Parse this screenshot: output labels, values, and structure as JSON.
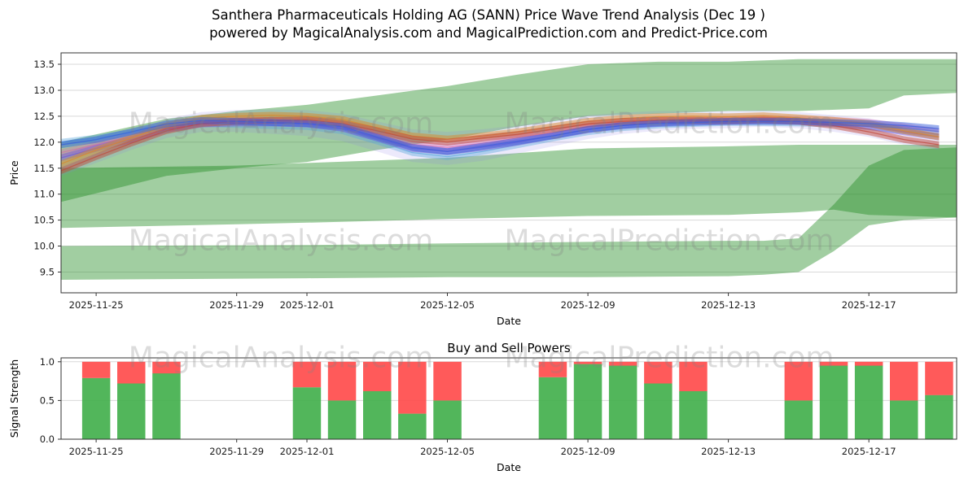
{
  "watermarks": {
    "left": "MagicalAnalysis.com",
    "right": "MagicalPrediction.com"
  },
  "colors": {
    "band_green": "#1f8b1f",
    "bar_buy": "#3fae49",
    "bar_sell": "#ff4848",
    "grid": "#d9d9d9",
    "spine": "#333333",
    "tick_text": "#1a1a1a",
    "watermark": "#808080"
  },
  "chart_data": [
    {
      "type": "area",
      "title_lines": [
        "Santhera Pharmaceuticals Holding AG (SANN) Price Wave Trend Analysis (Dec 19 )",
        "powered by MagicalAnalysis.com and MagicalPrediction.com and Predict-Price.com"
      ],
      "xlabel": "Date",
      "ylabel": "Price",
      "ylim": [
        9.1,
        13.72
      ],
      "x_base_date": "2025-11-24",
      "x_domain": [
        0,
        25.5
      ],
      "grid": "horizontal",
      "legend": "none",
      "yticks": [
        {
          "v": 13.5,
          "label": "13.5"
        },
        {
          "v": 13.0,
          "label": "13.0"
        },
        {
          "v": 12.5,
          "label": "12.5"
        },
        {
          "v": 12.0,
          "label": "12.0"
        },
        {
          "v": 11.5,
          "label": "11.5"
        },
        {
          "v": 11.0,
          "label": "11.0"
        },
        {
          "v": 10.5,
          "label": "10.5"
        },
        {
          "v": 10.0,
          "label": "10.0"
        },
        {
          "v": 9.5,
          "label": "9.5"
        }
      ],
      "xticks": [
        {
          "d": 1,
          "label": "2025-11-25"
        },
        {
          "d": 5,
          "label": "2025-11-29"
        },
        {
          "d": 7,
          "label": "2025-12-01"
        },
        {
          "d": 11,
          "label": "2025-12-05"
        },
        {
          "d": 15,
          "label": "2025-12-09"
        },
        {
          "d": 19,
          "label": "2025-12-13"
        },
        {
          "d": 23,
          "label": "2025-12-17"
        }
      ],
      "green_bands": [
        {
          "name": "upper-trend-band",
          "x": [
            0,
            3,
            5,
            7,
            9,
            11,
            13,
            15,
            17,
            19,
            21,
            23,
            24,
            25.5
          ],
          "top": [
            12.0,
            12.45,
            12.6,
            12.72,
            12.9,
            13.08,
            13.3,
            13.5,
            13.55,
            13.55,
            13.6,
            13.6,
            13.6,
            13.6
          ],
          "bottom": [
            10.85,
            11.35,
            11.5,
            11.62,
            11.85,
            12.05,
            12.3,
            12.5,
            12.55,
            12.6,
            12.6,
            12.65,
            12.9,
            12.95
          ]
        },
        {
          "name": "middle-trend-band",
          "x": [
            0,
            5,
            7,
            11,
            15,
            19,
            21,
            22,
            23,
            25.5
          ],
          "top": [
            11.5,
            11.55,
            11.6,
            11.7,
            11.88,
            11.92,
            11.95,
            11.95,
            11.95,
            11.95
          ],
          "bottom": [
            10.35,
            10.42,
            10.45,
            10.52,
            10.58,
            10.6,
            10.65,
            10.7,
            10.6,
            10.55
          ]
        },
        {
          "name": "lower-trend-band",
          "x": [
            0,
            7,
            11,
            15,
            19,
            20,
            21,
            22,
            23,
            24,
            25.5
          ],
          "top": [
            10.0,
            10.02,
            10.05,
            10.08,
            10.1,
            10.1,
            10.15,
            10.8,
            11.55,
            11.85,
            11.9
          ],
          "bottom": [
            9.35,
            9.38,
            9.4,
            9.4,
            9.42,
            9.45,
            9.5,
            9.9,
            10.4,
            10.5,
            10.55
          ]
        }
      ],
      "envelope": {
        "color": "#8f7fe8",
        "alpha": 0.17,
        "top": [
          11.75,
          12.0,
          12.2,
          12.45,
          12.58,
          12.62,
          12.63,
          12.62,
          12.55,
          12.4,
          12.25,
          12.2,
          12.25,
          12.32,
          12.42,
          12.52,
          12.57,
          12.6,
          12.6,
          12.6,
          12.62,
          12.58,
          12.52,
          12.46,
          12.34,
          12.24
        ],
        "bottom": [
          11.35,
          11.6,
          11.85,
          12.08,
          12.2,
          12.2,
          12.16,
          12.12,
          12.02,
          11.82,
          11.62,
          11.56,
          11.64,
          11.78,
          11.92,
          12.06,
          12.16,
          12.22,
          12.26,
          12.27,
          12.3,
          12.27,
          12.2,
          12.1,
          11.95,
          11.85
        ]
      },
      "wave_series": [
        {
          "name": "pink-wave",
          "color": "#d95fa8",
          "alpha": 0.35,
          "values": [
            11.8,
            11.95,
            12.12,
            12.3,
            12.4,
            12.42,
            12.42,
            12.4,
            12.33,
            12.15,
            11.96,
            11.9,
            11.98,
            12.08,
            12.18,
            12.3,
            12.38,
            12.42,
            12.44,
            12.44,
            12.46,
            12.44,
            12.42,
            12.38,
            12.3,
            12.2
          ]
        },
        {
          "name": "light-blue-wave",
          "color": "#58a6dd",
          "alpha": 0.4,
          "values": [
            12.0,
            12.08,
            12.18,
            12.3,
            12.36,
            12.34,
            12.32,
            12.3,
            12.22,
            12.02,
            11.8,
            11.72,
            11.82,
            11.95,
            12.08,
            12.2,
            12.28,
            12.33,
            12.36,
            12.38,
            12.38,
            12.37,
            12.35,
            12.3,
            12.22,
            12.15
          ]
        },
        {
          "name": "purple-wave",
          "color": "#7a4fd4",
          "alpha": 0.45,
          "values": [
            11.7,
            11.88,
            12.05,
            12.25,
            12.35,
            12.37,
            12.37,
            12.35,
            12.27,
            12.08,
            11.88,
            11.82,
            11.9,
            12.0,
            12.12,
            12.24,
            12.32,
            12.37,
            12.4,
            12.4,
            12.42,
            12.4,
            12.36,
            12.3,
            12.2,
            12.1
          ]
        },
        {
          "name": "orange-wave",
          "color": "#d98a2b",
          "alpha": 0.5,
          "values": [
            11.58,
            11.85,
            12.08,
            12.32,
            12.46,
            12.5,
            12.52,
            12.5,
            12.44,
            12.28,
            12.12,
            12.06,
            12.12,
            12.2,
            12.3,
            12.4,
            12.46,
            12.49,
            12.5,
            12.49,
            12.51,
            12.47,
            12.42,
            12.36,
            12.22,
            12.1
          ]
        },
        {
          "name": "red-wave",
          "color": "#bf4a3d",
          "alpha": 0.5,
          "values": [
            11.45,
            11.72,
            11.98,
            12.22,
            12.36,
            12.4,
            12.42,
            12.43,
            12.36,
            12.22,
            12.06,
            12.0,
            12.08,
            12.15,
            12.25,
            12.35,
            12.4,
            12.42,
            12.42,
            12.41,
            12.43,
            12.4,
            12.32,
            12.2,
            12.05,
            11.95
          ]
        },
        {
          "name": "blue-wave",
          "color": "#3a5fd9",
          "alpha": 0.5,
          "values": [
            11.95,
            12.05,
            12.2,
            12.35,
            12.42,
            12.4,
            12.38,
            12.36,
            12.3,
            12.1,
            11.9,
            11.82,
            11.92,
            12.02,
            12.12,
            12.25,
            12.32,
            12.36,
            12.38,
            12.4,
            12.4,
            12.4,
            12.38,
            12.36,
            12.32,
            12.26
          ]
        }
      ]
    },
    {
      "type": "bar",
      "title": "Buy and Sell Powers",
      "xlabel": "Date",
      "ylabel": "Signal Strength",
      "ylim": [
        0,
        1.05
      ],
      "stacked": true,
      "yticks": [
        {
          "v": 1.0,
          "label": "1.0"
        },
        {
          "v": 0.5,
          "label": "0.5"
        },
        {
          "v": 0.0,
          "label": "0.0"
        }
      ],
      "xticks": [
        {
          "d": 1,
          "label": "2025-11-25"
        },
        {
          "d": 5,
          "label": "2025-11-29"
        },
        {
          "d": 7,
          "label": "2025-12-01"
        },
        {
          "d": 11,
          "label": "2025-12-05"
        },
        {
          "d": 15,
          "label": "2025-12-09"
        },
        {
          "d": 19,
          "label": "2025-12-13"
        },
        {
          "d": 23,
          "label": "2025-12-17"
        }
      ],
      "series": [
        {
          "name": "Buy",
          "color": "#3fae49"
        },
        {
          "name": "Sell",
          "color": "#ff4848"
        }
      ],
      "bars": [
        {
          "date": "2025-11-25",
          "d": 1,
          "buy": 0.79,
          "sell": 0.21
        },
        {
          "date": "2025-11-26",
          "d": 2,
          "buy": 0.72,
          "sell": 0.28
        },
        {
          "date": "2025-11-27",
          "d": 3,
          "buy": 0.85,
          "sell": 0.15
        },
        {
          "date": "2025-12-01",
          "d": 7,
          "buy": 0.67,
          "sell": 0.33
        },
        {
          "date": "2025-12-02",
          "d": 8,
          "buy": 0.5,
          "sell": 0.5
        },
        {
          "date": "2025-12-03",
          "d": 9,
          "buy": 0.62,
          "sell": 0.38
        },
        {
          "date": "2025-12-04",
          "d": 10,
          "buy": 0.33,
          "sell": 0.67
        },
        {
          "date": "2025-12-05",
          "d": 11,
          "buy": 0.5,
          "sell": 0.5
        },
        {
          "date": "2025-12-08",
          "d": 14,
          "buy": 0.8,
          "sell": 0.2
        },
        {
          "date": "2025-12-09",
          "d": 15,
          "buy": 0.97,
          "sell": 0.03
        },
        {
          "date": "2025-12-10",
          "d": 16,
          "buy": 0.95,
          "sell": 0.05
        },
        {
          "date": "2025-12-11",
          "d": 17,
          "buy": 0.72,
          "sell": 0.28
        },
        {
          "date": "2025-12-12",
          "d": 18,
          "buy": 0.62,
          "sell": 0.38
        },
        {
          "date": "2025-12-15",
          "d": 21,
          "buy": 0.5,
          "sell": 0.5
        },
        {
          "date": "2025-12-16",
          "d": 22,
          "buy": 0.95,
          "sell": 0.05
        },
        {
          "date": "2025-12-17",
          "d": 23,
          "buy": 0.95,
          "sell": 0.05
        },
        {
          "date": "2025-12-18",
          "d": 24,
          "buy": 0.5,
          "sell": 0.5
        },
        {
          "date": "2025-12-19",
          "d": 25,
          "buy": 0.57,
          "sell": 0.43
        }
      ]
    }
  ]
}
